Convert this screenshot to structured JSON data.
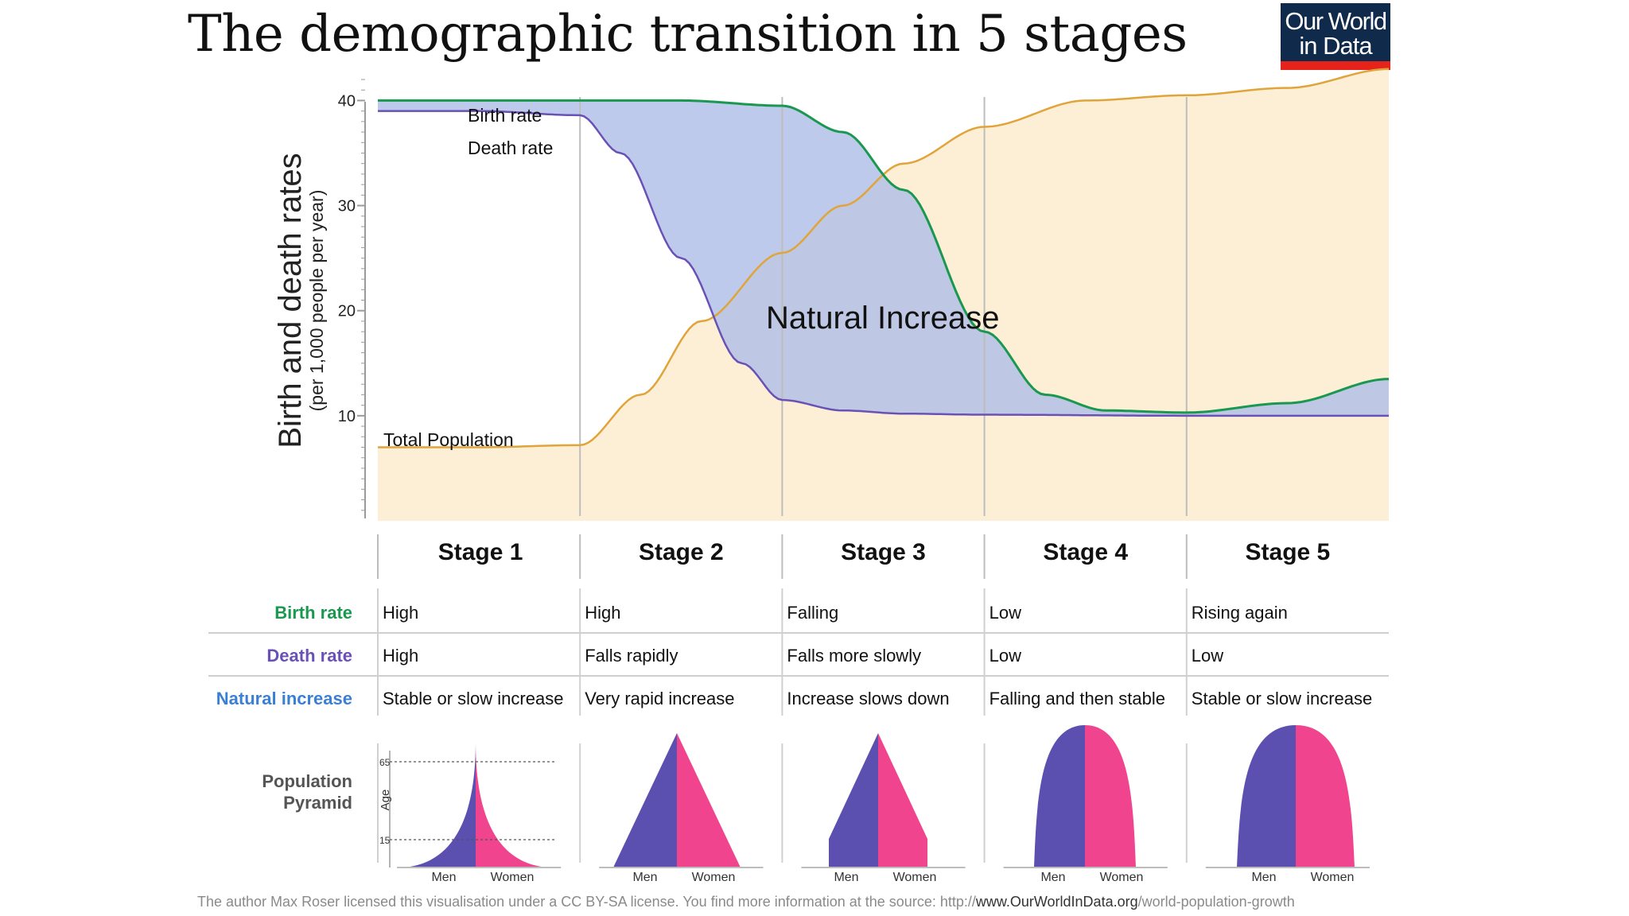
{
  "title": "The demographic transition in 5 stages",
  "logo": {
    "line1": "Our World",
    "line2": "in Data"
  },
  "credit": {
    "prefix": "The author Max Roser licensed this visualisation under a CC BY-SA license. You find more information at the source: http://",
    "domain": "www.OurWorldInData.org",
    "path": "/world-population-growth"
  },
  "colors": {
    "birth": "#1a9850",
    "death": "#6a51b5",
    "population": "#e0a43a",
    "population_fill": "#fcefd6",
    "increase_fill": "#aebde6",
    "men": "#5b4fb0",
    "women": "#f0458e",
    "natural_increase_label": "#3b7fd4",
    "logo_bg": "#102a4c",
    "logo_bar": "#e5231b"
  },
  "chart_data": {
    "type": "line",
    "ylabel": "Birth and death rates",
    "ylabel_sub": "(per 1,000 people per year)",
    "yticks": [
      10,
      20,
      30,
      40
    ],
    "ylim": [
      0,
      42
    ],
    "xlim": [
      0,
      5
    ],
    "stage_boundaries": [
      1,
      2,
      3,
      4
    ],
    "series": [
      {
        "name": "Birth rate",
        "x": [
          0,
          0.5,
          1,
          1.5,
          2,
          2.3,
          2.6,
          3,
          3.3,
          3.6,
          4,
          4.5,
          5
        ],
        "y": [
          40,
          40,
          40,
          40,
          39.5,
          37,
          31.5,
          18,
          12,
          10.5,
          10.3,
          11.2,
          13.5
        ]
      },
      {
        "name": "Death rate",
        "x": [
          0,
          0.5,
          1,
          1.2,
          1.5,
          1.8,
          2,
          2.3,
          2.6,
          3,
          4,
          5
        ],
        "y": [
          39,
          39,
          38.6,
          35,
          25,
          15,
          11.5,
          10.5,
          10.2,
          10.1,
          10,
          10
        ]
      },
      {
        "name": "Total Population",
        "x": [
          0,
          0.5,
          1,
          1.3,
          1.6,
          2,
          2.3,
          2.6,
          3,
          3.5,
          4,
          4.5,
          5
        ],
        "y": [
          7,
          7,
          7.2,
          12,
          19,
          25.5,
          30,
          34,
          37.5,
          40,
          40.5,
          41.2,
          43
        ]
      }
    ],
    "annotations": {
      "birth_rate": "Birth rate",
      "death_rate": "Death rate",
      "total_population": "Total Population",
      "natural_increase": "Natural Increase"
    }
  },
  "stages": [
    "Stage 1",
    "Stage 2",
    "Stage 3",
    "Stage 4",
    "Stage 5"
  ],
  "table": {
    "rows": [
      {
        "label": "Birth rate",
        "values": [
          "High",
          "High",
          "Falling",
          "Low",
          "Rising again"
        ]
      },
      {
        "label": "Death rate",
        "values": [
          "High",
          "Falls rapidly",
          "Falls more slowly",
          "Low",
          "Low"
        ]
      },
      {
        "label": "Natural increase",
        "values": [
          "Stable or slow increase",
          "Very rapid increase",
          "Increase slows down",
          "Falling and then stable",
          "Stable or slow increase"
        ]
      }
    ]
  },
  "pyramid": {
    "label_line1": "Population",
    "label_line2": "Pyramid",
    "age_label": "Age",
    "age_ticks": [
      "65",
      "15"
    ],
    "men_label": "Men",
    "women_label": "Women",
    "shapes": [
      "concave",
      "triangle",
      "tapered",
      "beehive",
      "beehive"
    ]
  }
}
